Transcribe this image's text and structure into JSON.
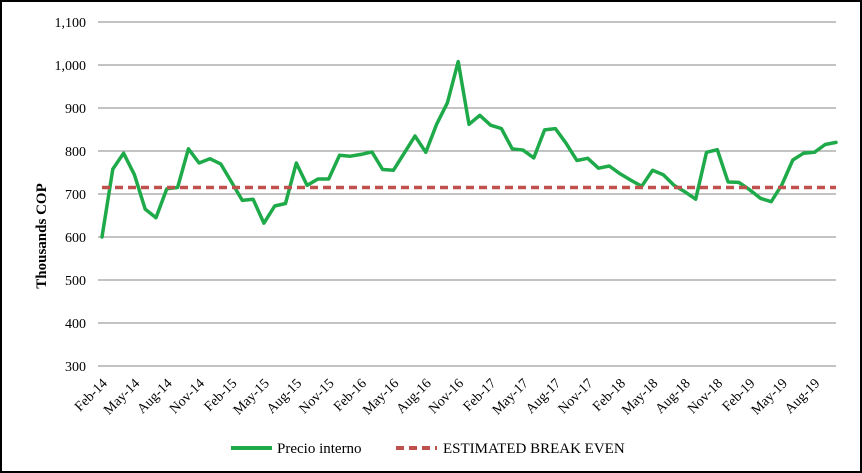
{
  "chart_data": {
    "type": "line",
    "xlabel": "",
    "ylabel": "Thousands COP",
    "ylim": [
      300,
      1100
    ],
    "yticks": [
      "300",
      "400",
      "500",
      "600",
      "700",
      "800",
      "900",
      "1,000",
      "1,100"
    ],
    "grid": true,
    "legend_position": "bottom",
    "categories": [
      "Feb-14",
      "Mar-14",
      "Apr-14",
      "May-14",
      "Jun-14",
      "Jul-14",
      "Aug-14",
      "Sep-14",
      "Oct-14",
      "Nov-14",
      "Dec-14",
      "Jan-15",
      "Feb-15",
      "Mar-15",
      "Apr-15",
      "May-15",
      "Jun-15",
      "Jul-15",
      "Aug-15",
      "Sep-15",
      "Oct-15",
      "Nov-15",
      "Dec-15",
      "Jan-16",
      "Feb-16",
      "Mar-16",
      "Apr-16",
      "May-16",
      "Jun-16",
      "Jul-16",
      "Aug-16",
      "Sep-16",
      "Oct-16",
      "Nov-16",
      "Dec-16",
      "Jan-17",
      "Feb-17",
      "Mar-17",
      "Apr-17",
      "May-17",
      "Jun-17",
      "Jul-17",
      "Aug-17",
      "Sep-17",
      "Oct-17",
      "Nov-17",
      "Dec-17",
      "Jan-18",
      "Feb-18",
      "Mar-18",
      "Apr-18",
      "May-18",
      "Jun-18",
      "Jul-18",
      "Aug-18",
      "Sep-18",
      "Oct-18",
      "Nov-18",
      "Dec-18",
      "Jan-19",
      "Feb-19",
      "Mar-19",
      "Apr-19",
      "May-19",
      "Jun-19",
      "Jul-19",
      "Aug-19",
      "Sep-19",
      "Oct-19"
    ],
    "tick_labels": [
      "Feb-14",
      "May-14",
      "Aug-14",
      "Nov-14",
      "Feb-15",
      "May-15",
      "Aug-15",
      "Nov-15",
      "Feb-16",
      "May-16",
      "Aug-16",
      "Nov-16",
      "Feb-17",
      "May-17",
      "Aug-17",
      "Nov-17",
      "Feb-18",
      "May-18",
      "Aug-18",
      "Nov-18",
      "Feb-19",
      "May-19",
      "Aug-19"
    ],
    "series": [
      {
        "name": "Precio interno",
        "color": "#1faa4a",
        "style": "solid",
        "values": [
          600,
          758,
          795,
          745,
          665,
          645,
          712,
          715,
          805,
          772,
          782,
          770,
          728,
          685,
          688,
          632,
          672,
          678,
          772,
          720,
          735,
          735,
          790,
          788,
          792,
          798,
          757,
          755,
          795,
          835,
          797,
          862,
          912,
          1008,
          862,
          883,
          860,
          852,
          805,
          802,
          784,
          849,
          852,
          818,
          778,
          783,
          760,
          765,
          747,
          732,
          718,
          755,
          745,
          720,
          705,
          688,
          797,
          803,
          728,
          727,
          710,
          690,
          682,
          722,
          779,
          795,
          797,
          815,
          820
        ]
      },
      {
        "name": "ESTIMATED BREAK EVEN",
        "color": "#c0504d",
        "style": "dashed",
        "values": [
          715,
          715,
          715,
          715,
          715,
          715,
          715,
          715,
          715,
          715,
          715,
          715,
          715,
          715,
          715,
          715,
          715,
          715,
          715,
          715,
          715,
          715,
          715,
          715,
          715,
          715,
          715,
          715,
          715,
          715,
          715,
          715,
          715,
          715,
          715,
          715,
          715,
          715,
          715,
          715,
          715,
          715,
          715,
          715,
          715,
          715,
          715,
          715,
          715,
          715,
          715,
          715,
          715,
          715,
          715,
          715,
          715,
          715,
          715,
          715,
          715,
          715,
          715,
          715,
          715,
          715,
          715,
          715,
          715
        ]
      }
    ]
  }
}
